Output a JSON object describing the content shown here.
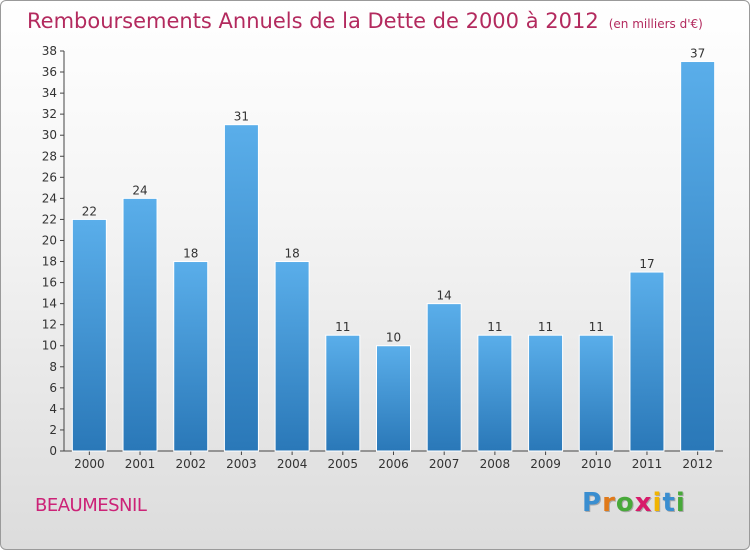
{
  "title": "Remboursements Annuels de la Dette de 2000 à 2012",
  "unit_note": "(en milliers d'€)",
  "commune": "BEAUMESNIL",
  "logo": {
    "letters": [
      "P",
      "r",
      "o",
      "x",
      "i",
      "t",
      "i"
    ],
    "colors": [
      "#3a8ed0",
      "#e07a1a",
      "#48a93a",
      "#d81b6a",
      "#f1b400",
      "#3a8ed0",
      "#48a93a"
    ]
  },
  "colors": {
    "bar_top": "#5aaeea",
    "bar_bottom": "#2a78b8",
    "title": "#b32a5e",
    "commune": "#cc2277"
  },
  "chart_data": {
    "type": "bar",
    "categories": [
      "2000",
      "2001",
      "2002",
      "2003",
      "2004",
      "2005",
      "2006",
      "2007",
      "2008",
      "2009",
      "2010",
      "2011",
      "2012"
    ],
    "values": [
      22,
      24,
      18,
      31,
      18,
      11,
      10,
      14,
      11,
      11,
      11,
      17,
      37
    ],
    "ylim": [
      0,
      38
    ],
    "yticks": [
      0,
      2,
      4,
      6,
      8,
      10,
      12,
      14,
      16,
      18,
      20,
      22,
      24,
      26,
      28,
      30,
      32,
      34,
      36,
      38
    ],
    "grid": false,
    "xlabel": "",
    "ylabel": ""
  }
}
